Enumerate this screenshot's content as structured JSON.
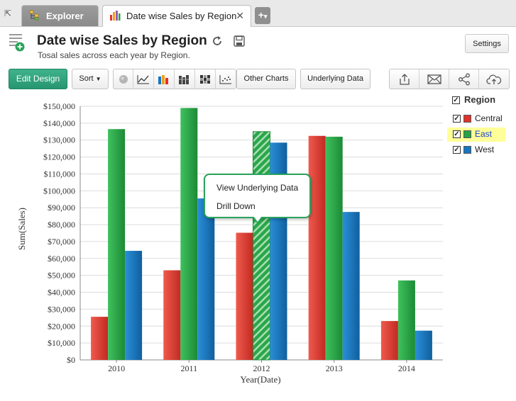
{
  "tabs": [
    {
      "label": "Explorer",
      "icon": "explorer-icon"
    },
    {
      "label": "Date wise Sales by Region",
      "icon": "bar-chart-icon"
    }
  ],
  "header": {
    "title": "Date wise Sales by Region",
    "subtitle": "Tosal sales across each year by Region.",
    "settings_label": "Settings"
  },
  "toolbar": {
    "edit_design": "Edit Design",
    "sort": "Sort",
    "other_charts": "Other Charts",
    "underlying_data": "Underlying Data"
  },
  "popup": {
    "view_underlying": "View Underlying Data",
    "drill_down": "Drill Down"
  },
  "legend": {
    "title": "Region",
    "items": [
      {
        "label": "Central",
        "color": "#e0322d",
        "checked": true,
        "highlighted": false
      },
      {
        "label": "East",
        "color": "#25a244",
        "checked": true,
        "highlighted": true
      },
      {
        "label": "West",
        "color": "#1676c0",
        "checked": true,
        "highlighted": false
      }
    ]
  },
  "chart_data": {
    "type": "bar",
    "title": "",
    "xlabel": "Year(Date)",
    "ylabel": "Sum(Sales)",
    "categories": [
      "2010",
      "2011",
      "2012",
      "2013",
      "2014"
    ],
    "series": [
      {
        "name": "Central",
        "color": "#e0322d",
        "values": [
          25500,
          53000,
          75200,
          132500,
          23000
        ]
      },
      {
        "name": "East",
        "color": "#25a244",
        "values": [
          136500,
          149000,
          135000,
          132000,
          47000
        ]
      },
      {
        "name": "West",
        "color": "#1676c0",
        "values": [
          64500,
          95500,
          128500,
          87500,
          17300
        ]
      }
    ],
    "ylim": [
      0,
      150000
    ],
    "yticks": [
      0,
      10000,
      20000,
      30000,
      40000,
      50000,
      60000,
      70000,
      80000,
      90000,
      100000,
      110000,
      120000,
      130000,
      140000,
      150000
    ],
    "ytick_labels": [
      "$0",
      "$10,000",
      "$20,000",
      "$30,000",
      "$40,000",
      "$50,000",
      "$60,000",
      "$70,000",
      "$80,000",
      "$90,000",
      "$100,000",
      "$110,000",
      "$120,000",
      "$130,000",
      "$140,000",
      "$150,000"
    ],
    "grid": true,
    "legend": "right",
    "selected": {
      "series": "East",
      "category": "2012"
    }
  }
}
